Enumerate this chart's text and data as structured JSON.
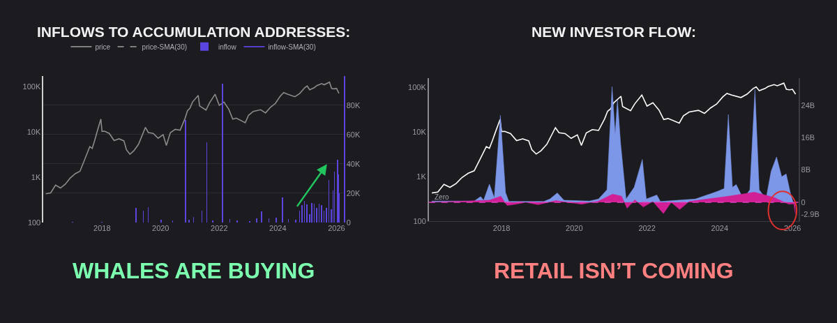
{
  "chart_data": [
    {
      "type": "line",
      "title": "INFLOWS TO ACCUMULATION ADDRESSES:",
      "annotations": [
        "WHALES ARE BUYING"
      ],
      "log": "y",
      "grid": "y",
      "legend": "top",
      "xlim": [
        "2016-01-01",
        "2026-04-01"
      ],
      "xticks": [
        "2018",
        "2020",
        "2022",
        "2024",
        "2026"
      ],
      "ylim": [
        100,
        170000
      ],
      "yticks": [
        100,
        {
          "value": 1000,
          "label": "1K"
        },
        {
          "value": 10000,
          "label": "10K"
        },
        {
          "value": 100000,
          "label": "100K"
        }
      ],
      "y2lim": [
        0,
        100000
      ],
      "y2ticks": [
        0,
        {
          "value": 20000,
          "label": "20K"
        },
        {
          "value": 40000,
          "label": "40K"
        },
        {
          "value": 60000,
          "label": "60K"
        },
        {
          "value": 80000,
          "label": "80K"
        }
      ],
      "series": [
        {
          "name": "price",
          "color": "#8c8c8c",
          "x": [
            "2016-02",
            "2016-04",
            "2016-06",
            "2016-08",
            "2016-10",
            "2016-12",
            "2017-02",
            "2017-04",
            "2017-06",
            "2017-08",
            "2017-09",
            "2017-10",
            "2017-11",
            "2017-12-17",
            "2018-01",
            "2018-02",
            "2018-04",
            "2018-06",
            "2018-08",
            "2018-10",
            "2018-11",
            "2018-12-15",
            "2019-02",
            "2019-04",
            "2019-06-26",
            "2019-08",
            "2019-10",
            "2019-12",
            "2020-02",
            "2020-03-13",
            "2020-05",
            "2020-07",
            "2020-09",
            "2020-11",
            "2020-12",
            "2021-01",
            "2021-02",
            "2021-04-14",
            "2021-05",
            "2021-07-20",
            "2021-09",
            "2021-11-10",
            "2022-01",
            "2022-03",
            "2022-05",
            "2022-06-18",
            "2022-08",
            "2022-11-21",
            "2023-01",
            "2023-03",
            "2023-06",
            "2023-08",
            "2023-10",
            "2023-12",
            "2024-02",
            "2024-03-14",
            "2024-05",
            "2024-08",
            "2024-10",
            "2024-12",
            "2025-01",
            "2025-02",
            "2025-04",
            "2025-05",
            "2025-07",
            "2025-08",
            "2025-10-06",
            "2025-11",
            "2025-12",
            "2026-01",
            "2026-02"
          ],
          "values": [
            430,
            450,
            670,
            575,
            700,
            960,
            1190,
            1350,
            2500,
            4700,
            4300,
            6400,
            10000,
            19000,
            10200,
            10300,
            9200,
            6400,
            7000,
            6300,
            4000,
            3200,
            3800,
            5300,
            12500,
            9600,
            9200,
            7200,
            8600,
            5000,
            9500,
            11300,
            10800,
            19700,
            29000,
            33000,
            45000,
            63000,
            37000,
            30000,
            43000,
            67000,
            38000,
            45000,
            31000,
            19000,
            20000,
            15800,
            23000,
            28000,
            30500,
            26000,
            34500,
            42000,
            61000,
            73000,
            67000,
            59000,
            70000,
            93000,
            102000,
            84000,
            94000,
            104000,
            115000,
            108000,
            124000,
            90000,
            88000,
            90000,
            70000
          ]
        },
        {
          "name": "price-SMA(30)",
          "line_style": "dashed",
          "color": "#8c8c8c",
          "values": [
            null
          ]
        },
        {
          "name": "inflow",
          "type": "bar",
          "axis": "y2",
          "color": "#5b45e0",
          "x": [
            "2017-01-01",
            "2018-01-01",
            "2019-03-01",
            "2019-06-01",
            "2019-08-01",
            "2020-01-10",
            "2020-06-01",
            "2020-11-10",
            "2020-12-20",
            "2021-02-15",
            "2021-06-01",
            "2021-08-01",
            "2021-10-15",
            "2022-02-10",
            "2022-05-15",
            "2022-08-15",
            "2023-01-15",
            "2023-04-15",
            "2023-06-15",
            "2023-09-15",
            "2023-12-15",
            "2024-03-01",
            "2024-05-15",
            "2024-08-15",
            "2024-10-01",
            "2024-11-01",
            "2024-12-01",
            "2025-01-01",
            "2025-02-01",
            "2025-03-01",
            "2025-04-01",
            "2025-05-01",
            "2025-06-01",
            "2025-07-01",
            "2025-08-01",
            "2025-09-01",
            "2025-10-01",
            "2025-11-01",
            "2025-11-20",
            "2025-12-10",
            "2026-01-15",
            "2026-01-25",
            "2026-02-01"
          ],
          "values": [
            200,
            300,
            10000,
            8000,
            10500,
            2000,
            1500,
            70000,
            2000,
            4000,
            8000,
            55000,
            1500,
            95000,
            2500,
            1500,
            1000,
            3000,
            7500,
            3000,
            3500,
            17000,
            2500,
            2000,
            8000,
            12000,
            15000,
            12500,
            6000,
            13500,
            13000,
            10000,
            13000,
            12000,
            8000,
            10000,
            29000,
            9000,
            22000,
            35000,
            43000,
            33000,
            20000
          ]
        },
        {
          "name": "inflow-SMA(30)",
          "type": "line",
          "axis": "y2",
          "color": "#5b45e0",
          "values": [
            null
          ]
        }
      ]
    },
    {
      "type": "area",
      "title": "NEW INVESTOR FLOW:",
      "annotations": [
        "RETAIL ISN’T COMING"
      ],
      "log": "y",
      "xlim": [
        "2016-01-01",
        "2026-03-01"
      ],
      "xticks": [
        "2018",
        "2020",
        "2022",
        "2024",
        "2026"
      ],
      "ylim": [
        100,
        158000
      ],
      "yticks": [
        100,
        {
          "value": 1000,
          "label": "1K"
        },
        {
          "value": 10000,
          "label": "10K"
        },
        {
          "value": 100000,
          "label": "100K"
        }
      ],
      "y2lim": [
        -4.7,
        30.6
      ],
      "y2ticks": [
        {
          "value": -2.9,
          "label": "-2.9B"
        },
        0,
        {
          "value": 8,
          "label": "8B"
        },
        {
          "value": 16,
          "label": "16B"
        },
        {
          "value": 24,
          "label": "24B"
        }
      ],
      "ref_lines": [
        {
          "axis": "y2",
          "value": 0,
          "label": "Zero",
          "color": "#e040c0",
          "line_style": "dashed"
        }
      ],
      "series": [
        {
          "axis": "y2",
          "color": "#7c96e8",
          "x": [
            "2016-02-01",
            "2017-04-01",
            "2017-06-05",
            "2017-07-05",
            "2017-09-01",
            "2017-10-20",
            "2017-12-20",
            "2018-02-10",
            "2018-03-15",
            "2019-03-01",
            "2019-05-01",
            "2019-07-15",
            "2019-09-20",
            "2020-06-01",
            "2020-09-01",
            "2020-11-25",
            "2021-01-15",
            "2021-02-15",
            "2021-03-10",
            "2021-04-10",
            "2021-06-05",
            "2021-08-25",
            "2021-11-15",
            "2021-12-25",
            "2022-04-10",
            "2022-05-15",
            "2023-05-01",
            "2023-12-10",
            "2024-02-15",
            "2024-03-28",
            "2024-05-08",
            "2024-06-15",
            "2024-08-25",
            "2024-10-30",
            "2024-12-20",
            "2025-02-01",
            "2025-04-10",
            "2025-06-01",
            "2025-07-25",
            "2025-09-15",
            "2025-10-30",
            "2025-12-10",
            "2026-01-08"
          ],
          "values": [
            0.3,
            0.3,
            1.4,
            0.5,
            4.5,
            1.1,
            21.5,
            2.4,
            0.2,
            0.2,
            0.8,
            2.3,
            0.5,
            0.3,
            0.8,
            3.1,
            28.6,
            16.8,
            25.3,
            14.8,
            0.8,
            3.7,
            10.6,
            0.8,
            1.8,
            0.2,
            0.8,
            2.7,
            3.4,
            21.7,
            3.7,
            4.4,
            0.8,
            3.1,
            27.9,
            3.1,
            0.8,
            7.7,
            11.2,
            6.3,
            7.0,
            2.4,
            0
          ]
        },
        {
          "axis": "y2",
          "color": "#d11f95",
          "x": [
            "2016-02-01",
            "2017-09-01",
            "2017-12-25",
            "2018-02-25",
            "2018-05-25",
            "2018-09-01",
            "2019-01-01",
            "2019-07-01",
            "2020-03-15",
            "2020-09-01",
            "2021-01-20",
            "2021-04-20",
            "2021-06-15",
            "2021-09-01",
            "2021-11-25",
            "2022-03-01",
            "2022-06-15",
            "2022-09-01",
            "2022-11-25",
            "2023-03-01",
            "2024-03-30",
            "2024-12-15",
            "2025-06-30",
            "2025-11-25",
            "2026-01-15",
            "2026-01-30"
          ],
          "values": [
            0,
            0.5,
            1.5,
            -0.8,
            -0.5,
            0,
            -0.6,
            0.4,
            -0.5,
            0.3,
            2.0,
            1.5,
            -1.5,
            0.6,
            -1.2,
            0.2,
            -2.8,
            0,
            -1.8,
            0.2,
            1.5,
            2.5,
            1.2,
            -0.5,
            -0.4,
            -2.9
          ]
        },
        {
          "type": "line",
          "color": "#ffffff",
          "x": [
            "2016-02",
            "2016-04",
            "2016-06",
            "2016-08",
            "2016-10",
            "2016-12",
            "2017-02",
            "2017-04",
            "2017-06",
            "2017-08",
            "2017-09",
            "2017-10",
            "2017-11",
            "2017-12-17",
            "2018-01",
            "2018-02",
            "2018-04",
            "2018-06",
            "2018-08",
            "2018-10",
            "2018-11",
            "2018-12-15",
            "2019-02",
            "2019-04",
            "2019-06-26",
            "2019-08",
            "2019-10",
            "2019-12",
            "2020-02",
            "2020-03-13",
            "2020-05",
            "2020-07",
            "2020-09",
            "2020-11",
            "2020-12",
            "2021-01",
            "2021-02",
            "2021-04-14",
            "2021-05",
            "2021-07-20",
            "2021-09",
            "2021-11-10",
            "2022-01",
            "2022-03",
            "2022-05",
            "2022-06-18",
            "2022-08",
            "2022-11-21",
            "2023-01",
            "2023-03",
            "2023-06",
            "2023-08",
            "2023-10",
            "2023-12",
            "2024-02",
            "2024-03-14",
            "2024-05",
            "2024-08",
            "2024-10",
            "2024-12",
            "2025-01",
            "2025-02",
            "2025-04",
            "2025-05",
            "2025-07",
            "2025-08",
            "2025-10-06",
            "2025-11",
            "2025-12",
            "2026-01",
            "2026-02"
          ],
          "values": [
            430,
            450,
            670,
            575,
            700,
            960,
            1190,
            1350,
            2500,
            4700,
            4300,
            6400,
            10000,
            19000,
            10200,
            10300,
            9200,
            6400,
            7000,
            6300,
            4000,
            3200,
            3800,
            5300,
            12500,
            9600,
            9200,
            7200,
            8600,
            5000,
            9500,
            11300,
            10800,
            19700,
            29000,
            33000,
            45000,
            63000,
            37000,
            30000,
            43000,
            67000,
            38000,
            45000,
            31000,
            19000,
            20000,
            15800,
            23000,
            28000,
            30500,
            26000,
            34500,
            42000,
            61000,
            73000,
            67000,
            59000,
            70000,
            93000,
            102000,
            84000,
            94000,
            104000,
            115000,
            108000,
            124000,
            90000,
            88000,
            90000,
            70000
          ]
        }
      ]
    }
  ]
}
